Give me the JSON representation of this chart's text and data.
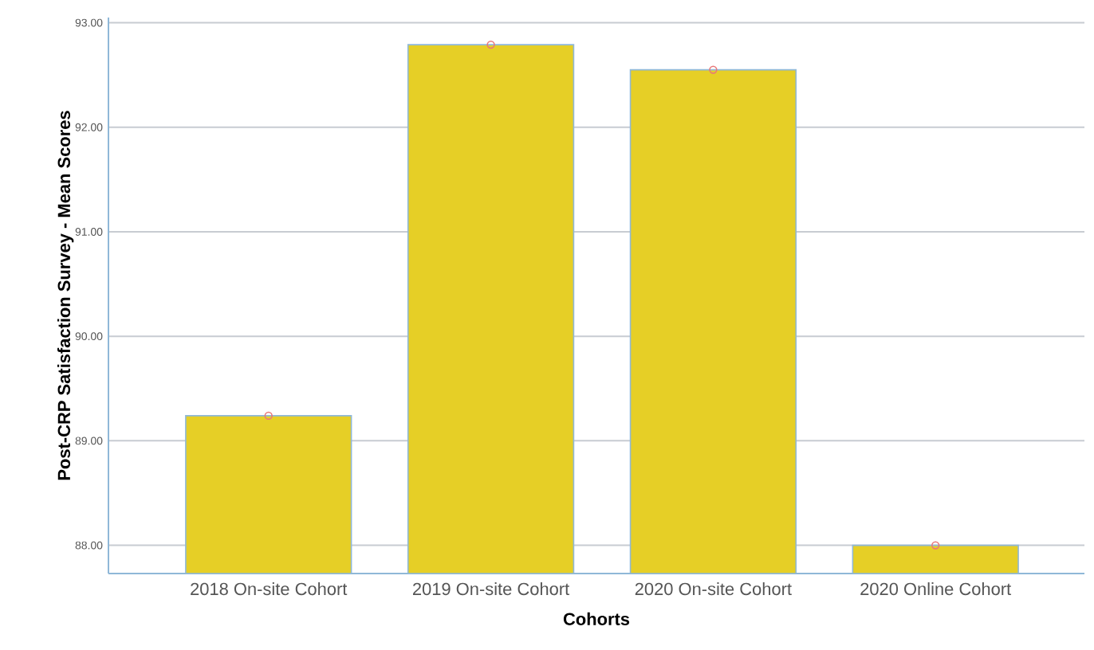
{
  "chart_data": {
    "type": "bar",
    "xlabel": "Cohorts",
    "ylabel": "Post-CRP Satisfaction Survey - Mean Scores",
    "categories": [
      "2018 On-site Cohort",
      "2019 On-site Cohort",
      "2020 On-site Cohort",
      "2020 Online Cohort"
    ],
    "series": [
      {
        "color": "#e6cf26",
        "values": [
          89.24,
          92.79,
          92.55,
          88.0
        ]
      },
      {
        "type": "scatter",
        "color": "#e8787a",
        "marker": "circle",
        "x": [
          "2018 On-site Cohort",
          "2019 On-site Cohort",
          "2020 On-site Cohort",
          "2020 Online Cohort"
        ],
        "values": [
          89.24,
          92.79,
          92.55,
          88.0
        ]
      }
    ],
    "ylim": [
      87.73,
      93.05
    ],
    "yticks": [
      {
        "value": 88,
        "label": "88.00"
      },
      {
        "value": 89,
        "label": "89.00"
      },
      {
        "value": 90,
        "label": "90.00"
      },
      {
        "value": 91,
        "label": "91.00"
      },
      {
        "value": 92,
        "label": "92.00"
      },
      {
        "value": 93,
        "label": "93.00"
      }
    ],
    "grid": "y"
  }
}
